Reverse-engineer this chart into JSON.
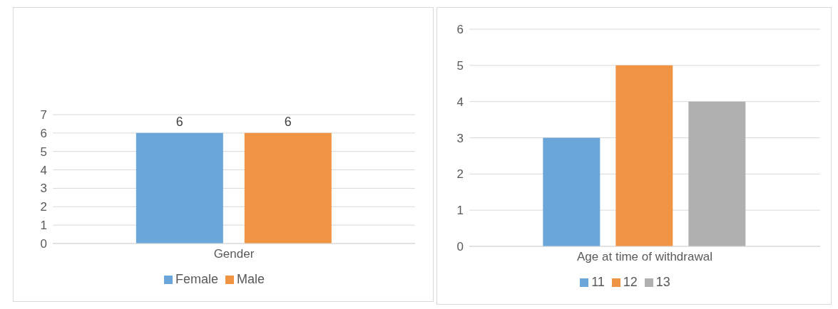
{
  "chart_data": [
    {
      "type": "bar",
      "categories": [
        "Gender"
      ],
      "series": [
        {
          "name": "Female",
          "color": "#6aa6da",
          "values": [
            6
          ]
        },
        {
          "name": "Male",
          "color": "#f09343",
          "values": [
            6
          ]
        }
      ],
      "ylim": [
        0,
        7
      ],
      "yticks": [
        0,
        1,
        2,
        3,
        4,
        5,
        6,
        7
      ],
      "grid": "y",
      "legend": "bottom",
      "data_labels": true
    },
    {
      "type": "bar",
      "categories": [
        "Age at time of withdrawal"
      ],
      "series": [
        {
          "name": "11",
          "color": "#6aa6da",
          "values": [
            3
          ]
        },
        {
          "name": "12",
          "color": "#f09343",
          "values": [
            5
          ]
        },
        {
          "name": "13",
          "color": "#b0b0b0",
          "values": [
            4
          ]
        }
      ],
      "ylim": [
        0,
        6
      ],
      "yticks": [
        0,
        1,
        2,
        3,
        4,
        5,
        6
      ],
      "grid": "y",
      "legend": "bottom"
    }
  ]
}
